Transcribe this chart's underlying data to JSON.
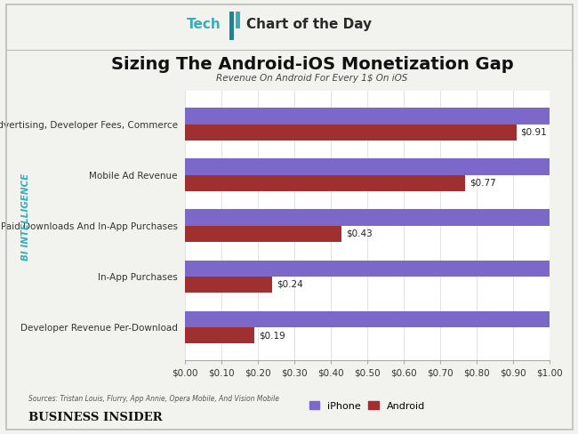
{
  "title": "Sizing The Android-iOS Monetization Gap",
  "subtitle": "Revenue On Android For Every 1$ On iOS",
  "categories": [
    "App Revenue, Advertising, Developer Fees, Commerce",
    "Mobile Ad Revenue",
    "Paid Downloads And In-App Purchases",
    "In-App Purchases",
    "Developer Revenue Per-Download"
  ],
  "iphone_values": [
    1.0,
    1.0,
    1.0,
    1.0,
    1.0
  ],
  "android_values": [
    0.91,
    0.77,
    0.43,
    0.24,
    0.19
  ],
  "android_labels": [
    "$0.91",
    "$0.77",
    "$0.43",
    "$0.24",
    "$0.19"
  ],
  "iphone_color": "#7B68C8",
  "android_color": "#A03030",
  "xlim": [
    0,
    1.0
  ],
  "xticks": [
    0.0,
    0.1,
    0.2,
    0.3,
    0.4,
    0.5,
    0.6,
    0.7,
    0.8,
    0.9,
    1.0
  ],
  "xtick_labels": [
    "$0.00",
    "$0.10",
    "$0.20",
    "$0.30",
    "$0.40",
    "$0.50",
    "$0.60",
    "$0.70",
    "$0.80",
    "$0.90",
    "$1.00"
  ],
  "source_text": "Sources: Tristan Louis, Flurry, App Annie, Opera Mobile, And Vision Mobile",
  "footer_text": "BUSINESS INSIDER",
  "bi_intelligence_text": "BI INTELLIGENCE",
  "background_color": "#F2F2EE",
  "plot_bg_color": "#FFFFFF",
  "bar_height": 0.32,
  "title_fontsize": 14,
  "subtitle_fontsize": 7.5,
  "tick_fontsize": 7.5,
  "label_fontsize": 7.5,
  "header_tech_color": "#3AACB8",
  "header_text_color": "#2A2A2A",
  "bi_color": "#3AACB8",
  "border_color": "#BBBBBB"
}
